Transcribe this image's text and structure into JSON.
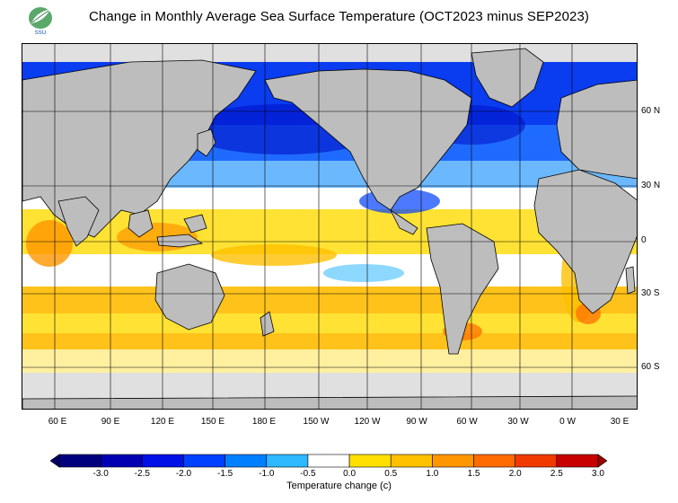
{
  "title": "Change in Monthly Average Sea Surface Temperature (OCT2023 minus SEP2023)",
  "logo": {
    "text": "ssu",
    "icon": "leaf-logo"
  },
  "map": {
    "projection": "cylindrical",
    "lat_labels": [
      "60 N",
      "30 N",
      "0",
      "30 S",
      "60 S"
    ],
    "lon_labels": [
      "60 E",
      "90 E",
      "120 E",
      "150 E",
      "180 E",
      "150 W",
      "120 W",
      "90 W",
      "60 W",
      "30 W",
      "0 W",
      "30 E"
    ],
    "land_color": "#bdbdbd",
    "ice_color": "#e0e0e0",
    "coastline_color": "#000000"
  },
  "colorbar": {
    "label": "Temperature change  (c)",
    "ticks": [
      "-3.0",
      "-2.5",
      "-2.0",
      "-1.5",
      "-1.0",
      "-0.5",
      "0.0",
      "0.5",
      "1.0",
      "1.5",
      "2.0",
      "2.5",
      "3.0"
    ],
    "colors": [
      "#00007f",
      "#0000b2",
      "#0010e6",
      "#0040ff",
      "#0080ff",
      "#2db8ff",
      "#ffffff",
      "#ffe000",
      "#ffc000",
      "#ff9600",
      "#ff6a00",
      "#f03a00",
      "#c80000"
    ],
    "under_color": "#000066",
    "over_color": "#9c0000"
  }
}
